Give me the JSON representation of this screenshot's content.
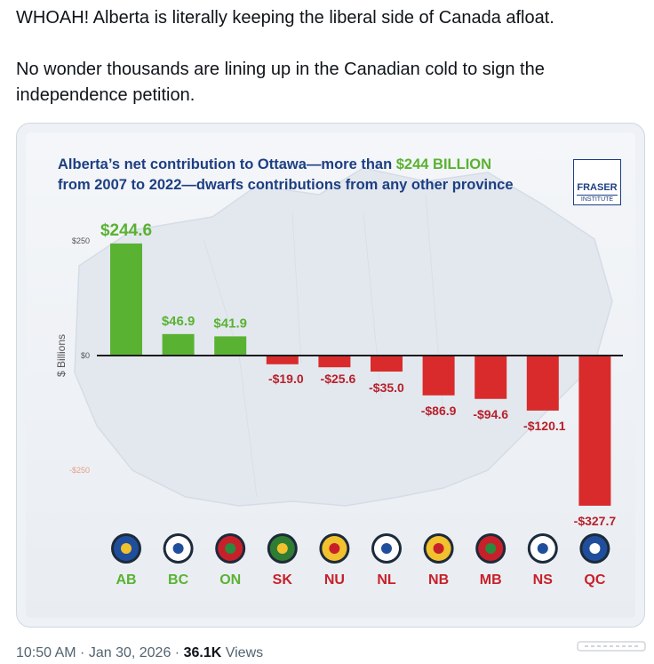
{
  "tweet": {
    "line1": "WHOAH! Alberta is literally keeping the liberal side of Canada afloat.",
    "line2": "No wonder thousands are lining up in the Canadian cold to sign the independence petition."
  },
  "footer": {
    "time": "10:50 AM",
    "date": "Jan 30, 2026",
    "sep1": " · ",
    "sep2": " · ",
    "views_count": "36.1K",
    "views_label": " Views"
  },
  "logo": {
    "line1": "FRASER",
    "line2": "INSTITUTE"
  },
  "chart_data": {
    "type": "bar",
    "title_part1": "Alberta’s net contribution to Ottawa—more than ",
    "title_highlight": "$244 BILLION",
    "title_part2": "from 2007 to 2022—dwarfs contributions from any other province",
    "ylabel": "$ Billions",
    "ylim": [
      -327.7,
      250
    ],
    "yticks": [
      250,
      0,
      -250
    ],
    "ytick_labels": [
      "$250",
      "$0",
      "-$250"
    ],
    "categories": [
      "AB",
      "BC",
      "ON",
      "SK",
      "NU",
      "NL",
      "NB",
      "MB",
      "NS",
      "QC"
    ],
    "values": [
      244.6,
      46.9,
      41.9,
      -19.0,
      -25.6,
      -35.0,
      -86.9,
      -94.6,
      -120.1,
      -327.7
    ],
    "value_labels": [
      "$244.6",
      "$46.9",
      "$41.9",
      "-$19.0",
      "-$25.6",
      "-$35.0",
      "-$86.9",
      "-$94.6",
      "-$120.1",
      "-$327.7"
    ],
    "positive_color": "#5ab232",
    "negative_color": "#d92b2b",
    "label_positive_color": "#5ab232",
    "label_negative_color": "#b8202a",
    "category_label_color": "#5ab232",
    "category_label_color_negative": "#c8202a",
    "grid": false,
    "legend": "none"
  },
  "flags": [
    {
      "code": "AB",
      "icon": "alberta-flag-icon",
      "bg": "#1f4f9c",
      "mark": "#f2c12e"
    },
    {
      "code": "BC",
      "icon": "british-columbia-flag-icon",
      "bg": "#ffffff",
      "mark": "#1f4f9c"
    },
    {
      "code": "ON",
      "icon": "ontario-flag-icon",
      "bg": "#c8202a",
      "mark": "#2a8a3e"
    },
    {
      "code": "SK",
      "icon": "saskatchewan-flag-icon",
      "bg": "#2e7d32",
      "mark": "#f2c12e"
    },
    {
      "code": "NU",
      "icon": "nunavut-flag-icon",
      "bg": "#f2c12e",
      "mark": "#c8202a"
    },
    {
      "code": "NL",
      "icon": "newfoundland-flag-icon",
      "bg": "#ffffff",
      "mark": "#1f4f9c"
    },
    {
      "code": "NB",
      "icon": "new-brunswick-flag-icon",
      "bg": "#f2c12e",
      "mark": "#c8202a"
    },
    {
      "code": "MB",
      "icon": "manitoba-flag-icon",
      "bg": "#c8202a",
      "mark": "#2a8a3e"
    },
    {
      "code": "NS",
      "icon": "nova-scotia-flag-icon",
      "bg": "#ffffff",
      "mark": "#1f4f9c"
    },
    {
      "code": "QC",
      "icon": "quebec-flag-icon",
      "bg": "#1f4f9c",
      "mark": "#ffffff"
    }
  ]
}
